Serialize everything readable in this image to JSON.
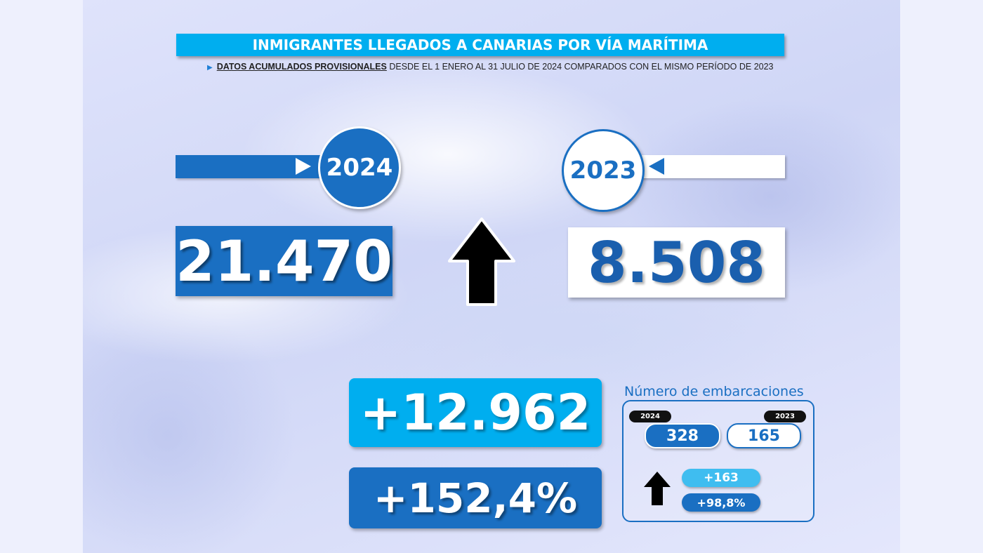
{
  "title": "INMIGRANTES LLEGADOS A CANARIAS POR VÍA MARÍTIMA",
  "subtitle": {
    "emphasis": "DATOS ACUMULADOS PROVISIONALES",
    "rest": " DESDE EL 1 ENERO AL 31 JULIO DE 2024 COMPARADOS CON EL MISMO PERÍODO DE 2023"
  },
  "current": {
    "year": "2024",
    "value": "21.470"
  },
  "previous": {
    "year": "2023",
    "value": "8.508"
  },
  "trend": "up-arrow-icon",
  "difference": "+12.962",
  "percent_change": "+152,4%",
  "boats": {
    "title": "Número de embarcaciones",
    "current_year": "2024",
    "current_value": "328",
    "previous_year": "2023",
    "previous_value": "165",
    "difference": "+163",
    "percent_change": "+98,8%"
  },
  "colors": {
    "primary_blue": "#1a6fc2",
    "light_blue": "#00aeef",
    "arrow": "#000000"
  }
}
